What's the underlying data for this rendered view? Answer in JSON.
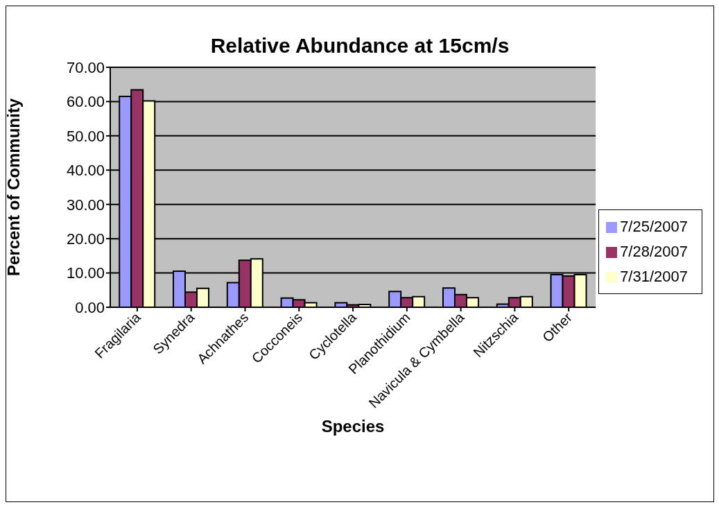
{
  "chart_data": {
    "type": "bar",
    "title": "Relative Abundance at 15cm/s",
    "xlabel": "Species",
    "ylabel": "Percent of Community",
    "categories": [
      "Fragilaria",
      "Synedra",
      "Achnathes",
      "Cocconeis",
      "Cyclotella",
      "Planothidium",
      "Navicula & Cymbella",
      "Nitzschia",
      "Other"
    ],
    "series": [
      {
        "name": "7/25/2007",
        "color": "#9999ff",
        "values": [
          61.5,
          10.5,
          7.2,
          2.7,
          1.3,
          4.6,
          5.6,
          0.9,
          9.5
        ]
      },
      {
        "name": "7/28/2007",
        "color": "#993366",
        "values": [
          63.4,
          4.4,
          13.7,
          2.2,
          0.7,
          2.8,
          3.7,
          2.8,
          9.1
        ]
      },
      {
        "name": "7/31/2007",
        "color": "#ffffcc",
        "values": [
          60.2,
          5.5,
          14.1,
          1.3,
          0.8,
          3.1,
          2.8,
          3.1,
          9.5
        ]
      }
    ],
    "ylim": [
      0,
      70
    ],
    "yticks": [
      {
        "value": 0,
        "label": "0.00"
      },
      {
        "value": 10,
        "label": "10.00"
      },
      {
        "value": 20,
        "label": "20.00"
      },
      {
        "value": 30,
        "label": "30.00"
      },
      {
        "value": 40,
        "label": "40.00"
      },
      {
        "value": 50,
        "label": "50.00"
      },
      {
        "value": 60,
        "label": "60.00"
      },
      {
        "value": 70,
        "label": "70.00"
      }
    ],
    "grid": "y",
    "legend": "right"
  }
}
